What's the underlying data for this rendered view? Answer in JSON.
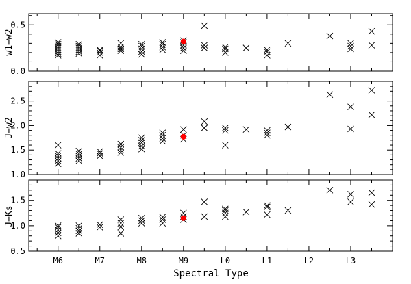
{
  "chart_data": [
    {
      "type": "scatter",
      "panel": "top",
      "ylabel": "w1−w2",
      "ylim": [
        0.0,
        0.62
      ],
      "yticks": [
        "0.0",
        "0.5"
      ],
      "ytick_values": [
        0.0,
        0.5
      ],
      "series": [
        {
          "marker": "x",
          "color": "#000000",
          "points": [
            [
              6.0,
              0.17
            ],
            [
              6.0,
              0.19
            ],
            [
              6.0,
              0.21
            ],
            [
              6.0,
              0.23
            ],
            [
              6.0,
              0.25
            ],
            [
              6.0,
              0.27
            ],
            [
              6.0,
              0.29
            ],
            [
              6.0,
              0.31
            ],
            [
              6.5,
              0.19
            ],
            [
              6.5,
              0.21
            ],
            [
              6.5,
              0.23
            ],
            [
              6.5,
              0.25
            ],
            [
              6.5,
              0.27
            ],
            [
              6.5,
              0.29
            ],
            [
              7.0,
              0.17
            ],
            [
              7.0,
              0.2
            ],
            [
              7.0,
              0.22
            ],
            [
              7.0,
              0.23
            ],
            [
              7.5,
              0.22
            ],
            [
              7.5,
              0.24
            ],
            [
              7.5,
              0.26
            ],
            [
              7.5,
              0.3
            ],
            [
              8.0,
              0.18
            ],
            [
              8.0,
              0.21
            ],
            [
              8.0,
              0.24
            ],
            [
              8.0,
              0.27
            ],
            [
              8.0,
              0.29
            ],
            [
              8.5,
              0.23
            ],
            [
              8.5,
              0.26
            ],
            [
              8.5,
              0.29
            ],
            [
              8.5,
              0.31
            ],
            [
              9.0,
              0.22
            ],
            [
              9.0,
              0.25
            ],
            [
              9.0,
              0.28
            ],
            [
              9.0,
              0.31
            ],
            [
              9.0,
              0.33
            ],
            [
              9.5,
              0.25
            ],
            [
              9.5,
              0.28
            ],
            [
              9.5,
              0.49
            ],
            [
              10.0,
              0.2
            ],
            [
              10.0,
              0.24
            ],
            [
              10.0,
              0.26
            ],
            [
              10.5,
              0.25
            ],
            [
              11.0,
              0.17
            ],
            [
              11.0,
              0.21
            ],
            [
              11.0,
              0.23
            ],
            [
              11.5,
              0.3
            ],
            [
              12.5,
              0.38
            ],
            [
              13.0,
              0.24
            ],
            [
              13.0,
              0.27
            ],
            [
              13.0,
              0.3
            ],
            [
              13.5,
              0.28
            ],
            [
              13.5,
              0.43
            ]
          ]
        },
        {
          "marker": "circle",
          "color": "#ff0000",
          "points": [
            [
              9.0,
              0.32
            ]
          ]
        }
      ]
    },
    {
      "type": "scatter",
      "panel": "middle",
      "ylabel": "J−w2",
      "ylim": [
        1.0,
        2.9
      ],
      "yticks": [
        "1.0",
        "1.5",
        "2.0",
        "2.5"
      ],
      "ytick_values": [
        1.0,
        1.5,
        2.0,
        2.5
      ],
      "series": [
        {
          "marker": "x",
          "color": "#000000",
          "points": [
            [
              6.0,
              1.22
            ],
            [
              6.0,
              1.28
            ],
            [
              6.0,
              1.33
            ],
            [
              6.0,
              1.38
            ],
            [
              6.0,
              1.43
            ],
            [
              6.0,
              1.6
            ],
            [
              6.5,
              1.28
            ],
            [
              6.5,
              1.33
            ],
            [
              6.5,
              1.38
            ],
            [
              6.5,
              1.42
            ],
            [
              6.5,
              1.48
            ],
            [
              7.0,
              1.38
            ],
            [
              7.0,
              1.43
            ],
            [
              7.0,
              1.47
            ],
            [
              7.5,
              1.45
            ],
            [
              7.5,
              1.5
            ],
            [
              7.5,
              1.55
            ],
            [
              7.5,
              1.62
            ],
            [
              8.0,
              1.52
            ],
            [
              8.0,
              1.58
            ],
            [
              8.0,
              1.65
            ],
            [
              8.0,
              1.7
            ],
            [
              8.0,
              1.75
            ],
            [
              8.5,
              1.68
            ],
            [
              8.5,
              1.74
            ],
            [
              8.5,
              1.8
            ],
            [
              8.5,
              1.85
            ],
            [
              9.0,
              1.72
            ],
            [
              9.0,
              1.8
            ],
            [
              9.0,
              1.92
            ],
            [
              9.5,
              1.95
            ],
            [
              9.5,
              2.08
            ],
            [
              10.0,
              1.6
            ],
            [
              10.0,
              1.9
            ],
            [
              10.0,
              1.95
            ],
            [
              10.5,
              1.92
            ],
            [
              11.0,
              1.8
            ],
            [
              11.0,
              1.85
            ],
            [
              11.0,
              1.9
            ],
            [
              11.5,
              1.97
            ],
            [
              12.5,
              2.63
            ],
            [
              13.0,
              1.93
            ],
            [
              13.0,
              2.38
            ],
            [
              13.5,
              2.22
            ],
            [
              13.5,
              2.72
            ]
          ]
        },
        {
          "marker": "circle",
          "color": "#ff0000",
          "points": [
            [
              9.0,
              1.77
            ]
          ]
        }
      ]
    },
    {
      "type": "scatter",
      "panel": "bottom",
      "ylabel": "J−Ks",
      "ylim": [
        0.5,
        1.9
      ],
      "yticks": [
        "0.5",
        "1.0",
        "1.5"
      ],
      "ytick_values": [
        0.5,
        1.0,
        1.5
      ],
      "xlabel": "Spectral Type",
      "xlim": [
        5.3,
        14.0
      ],
      "xticks": [
        "M6",
        "M7",
        "M8",
        "M9",
        "L0",
        "L1",
        "L2",
        "L3"
      ],
      "xtick_values": [
        6,
        7,
        8,
        9,
        10,
        11,
        12,
        13
      ],
      "series": [
        {
          "marker": "x",
          "color": "#000000",
          "points": [
            [
              6.0,
              0.8
            ],
            [
              6.0,
              0.86
            ],
            [
              6.0,
              0.92
            ],
            [
              6.0,
              0.97
            ],
            [
              6.0,
              1.0
            ],
            [
              6.5,
              0.85
            ],
            [
              6.5,
              0.9
            ],
            [
              6.5,
              0.95
            ],
            [
              6.5,
              1.0
            ],
            [
              7.0,
              0.97
            ],
            [
              7.0,
              1.02
            ],
            [
              7.5,
              0.85
            ],
            [
              7.5,
              0.98
            ],
            [
              7.5,
              1.05
            ],
            [
              7.5,
              1.12
            ],
            [
              8.0,
              1.05
            ],
            [
              8.0,
              1.1
            ],
            [
              8.0,
              1.15
            ],
            [
              8.5,
              1.05
            ],
            [
              8.5,
              1.12
            ],
            [
              8.5,
              1.17
            ],
            [
              9.0,
              1.12
            ],
            [
              9.0,
              1.18
            ],
            [
              9.0,
              1.25
            ],
            [
              9.5,
              1.18
            ],
            [
              9.5,
              1.47
            ],
            [
              10.0,
              1.18
            ],
            [
              10.0,
              1.25
            ],
            [
              10.0,
              1.3
            ],
            [
              10.0,
              1.33
            ],
            [
              10.5,
              1.27
            ],
            [
              11.0,
              1.22
            ],
            [
              11.0,
              1.37
            ],
            [
              11.0,
              1.4
            ],
            [
              11.5,
              1.3
            ],
            [
              12.5,
              1.7
            ],
            [
              13.0,
              1.47
            ],
            [
              13.0,
              1.62
            ],
            [
              13.5,
              1.42
            ],
            [
              13.5,
              1.65
            ]
          ]
        },
        {
          "marker": "circle",
          "color": "#ff0000",
          "points": [
            [
              9.0,
              1.15
            ]
          ]
        }
      ]
    }
  ]
}
